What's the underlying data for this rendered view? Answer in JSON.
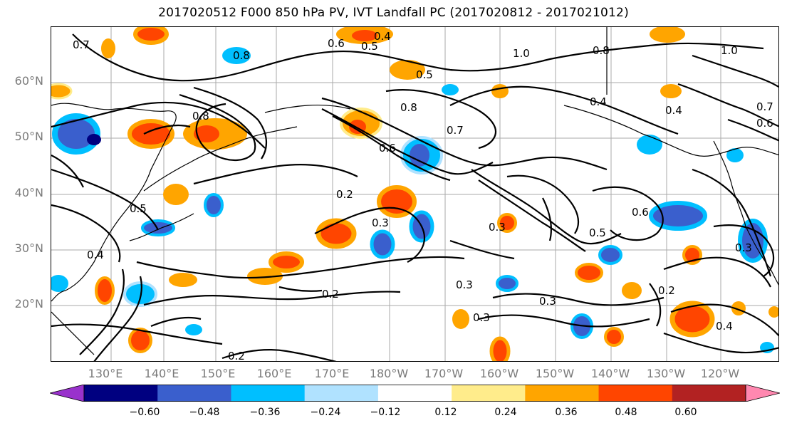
{
  "title": "2017020512 F000 850 hPa PV, IVT Landfall PC (2017020812 - 2017021012)",
  "lat_labels": [
    "60°N",
    "50°N",
    "40°N",
    "30°N",
    "20°N"
  ],
  "lon_labels": [
    "130°E",
    "140°E",
    "150°E",
    "160°E",
    "170°E",
    "180°W",
    "170°W",
    "160°W",
    "150°W",
    "140°W",
    "130°W",
    "120°W"
  ],
  "colorbar": {
    "colors": [
      "#9932cc",
      "#000080",
      "#3a5fcd",
      "#00bfff",
      "#b0e2ff",
      "#ffffff",
      "#ffec8b",
      "#ffa500",
      "#ff4500",
      "#b22222",
      "#ff88b0"
    ],
    "tick_labels": [
      "−0.60",
      "−0.48",
      "−0.36",
      "−0.24",
      "−0.12",
      "0.12",
      "0.24",
      "0.36",
      "0.48",
      "0.60"
    ]
  },
  "contour_labels": [
    "0.8",
    "0.4",
    "0.6",
    "0.5",
    "1.0",
    "0.8",
    "0.5",
    "0.4",
    "0.7",
    "0.8",
    "0.7",
    "0.6",
    "0.3",
    "0.2",
    "0.3",
    "0.3",
    "0.5",
    "0.6",
    "0.2",
    "0.3",
    "0.3",
    "0.2",
    "0.5",
    "0.4",
    "0.2",
    "0.4",
    "0.3",
    "0.4",
    "0.6",
    "0.7",
    "1.0",
    "0.8"
  ]
}
